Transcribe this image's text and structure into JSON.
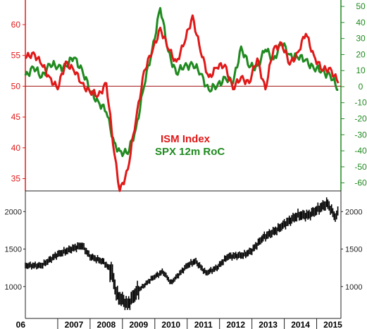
{
  "colors": {
    "ism": "#e01818",
    "spx_roc": "#1f8a1f",
    "spx": "#000000",
    "axis": "#222222"
  },
  "chart_data": [
    {
      "type": "line",
      "legend_placement": "center",
      "x_range": [
        "2006-01",
        "2015-09"
      ],
      "left_axis": {
        "ticks": [
          35,
          40,
          45,
          50,
          55,
          60
        ],
        "ylim": [
          33,
          64
        ]
      },
      "right_axis": {
        "ticks": [
          -60,
          -50,
          -40,
          -30,
          -20,
          -10,
          0,
          10,
          20,
          30,
          40,
          50
        ],
        "ylim": [
          -65,
          54
        ]
      },
      "reference_line": {
        "axis": "left",
        "value": 50
      },
      "series": [
        {
          "name": "ISM Index",
          "axis": "left",
          "x": [
            "2006-01",
            "2006-04",
            "2006-07",
            "2006-10",
            "2007-01",
            "2007-04",
            "2007-07",
            "2007-10",
            "2008-01",
            "2008-04",
            "2008-07",
            "2008-10",
            "2008-12",
            "2009-03",
            "2009-06",
            "2009-09",
            "2009-12",
            "2010-03",
            "2010-06",
            "2010-09",
            "2010-12",
            "2011-03",
            "2011-06",
            "2011-09",
            "2011-12",
            "2012-03",
            "2012-06",
            "2012-09",
            "2012-12",
            "2013-03",
            "2013-06",
            "2013-09",
            "2013-12",
            "2014-03",
            "2014-06",
            "2014-09",
            "2014-12",
            "2015-03",
            "2015-06",
            "2015-09"
          ],
          "values": [
            54.5,
            55.5,
            53.5,
            51.5,
            49.5,
            54.0,
            52.5,
            50.5,
            49.0,
            48.5,
            50.5,
            39.0,
            33.0,
            36.5,
            44.5,
            52.5,
            55.5,
            59.5,
            56.0,
            54.0,
            57.0,
            61.5,
            55.5,
            51.5,
            53.0,
            53.5,
            49.5,
            51.5,
            50.5,
            54.5,
            49.5,
            56.0,
            57.0,
            53.5,
            55.5,
            58.5,
            55.0,
            52.5,
            53.0,
            50.5
          ]
        },
        {
          "name": "SPX 12m RoC",
          "axis": "right",
          "x": [
            "2006-01",
            "2006-04",
            "2006-07",
            "2006-10",
            "2007-01",
            "2007-04",
            "2007-07",
            "2007-10",
            "2008-01",
            "2008-04",
            "2008-07",
            "2008-10",
            "2008-12",
            "2009-03",
            "2009-06",
            "2009-09",
            "2009-12",
            "2010-03",
            "2010-06",
            "2010-09",
            "2010-12",
            "2011-03",
            "2011-06",
            "2011-09",
            "2011-12",
            "2012-03",
            "2012-06",
            "2012-09",
            "2012-12",
            "2013-03",
            "2013-06",
            "2013-09",
            "2013-12",
            "2014-03",
            "2014-06",
            "2014-09",
            "2014-12",
            "2015-03",
            "2015-06",
            "2015-09"
          ],
          "values": [
            7,
            12,
            6,
            14,
            12,
            13,
            18,
            11,
            -3,
            -9,
            -16,
            -35,
            -40,
            -42,
            -26,
            0,
            23,
            49,
            22,
            8,
            13,
            14,
            8,
            -2,
            0,
            6,
            2,
            25,
            12,
            13,
            23,
            17,
            27,
            20,
            18,
            17,
            11,
            10,
            7,
            -2
          ]
        }
      ]
    },
    {
      "type": "bar",
      "subtype": "ohlc",
      "series_label": "SPX",
      "y_ticks": [
        1000,
        1500,
        2000
      ],
      "ylim": [
        575,
        2200
      ],
      "x_ticks": [
        "06",
        "2007",
        "2008",
        "2009",
        "2010",
        "2011",
        "2012",
        "2013",
        "2014",
        "2015"
      ],
      "x": [
        "2006-01",
        "2006-07",
        "2007-01",
        "2007-06",
        "2007-10",
        "2008-01",
        "2008-06",
        "2008-09",
        "2008-11",
        "2009-03",
        "2009-06",
        "2009-12",
        "2010-04",
        "2010-07",
        "2011-01",
        "2011-04",
        "2011-08",
        "2011-12",
        "2012-04",
        "2012-10",
        "2013-01",
        "2013-05",
        "2013-10",
        "2014-01",
        "2014-06",
        "2014-10",
        "2015-01",
        "2015-05",
        "2015-08",
        "2015-09"
      ],
      "values": [
        1280,
        1280,
        1430,
        1500,
        1550,
        1400,
        1330,
        1200,
        880,
        760,
        920,
        1110,
        1200,
        1050,
        1280,
        1340,
        1180,
        1250,
        1400,
        1420,
        1480,
        1650,
        1750,
        1830,
        1950,
        1950,
        2020,
        2110,
        1920,
        2000
      ]
    }
  ]
}
